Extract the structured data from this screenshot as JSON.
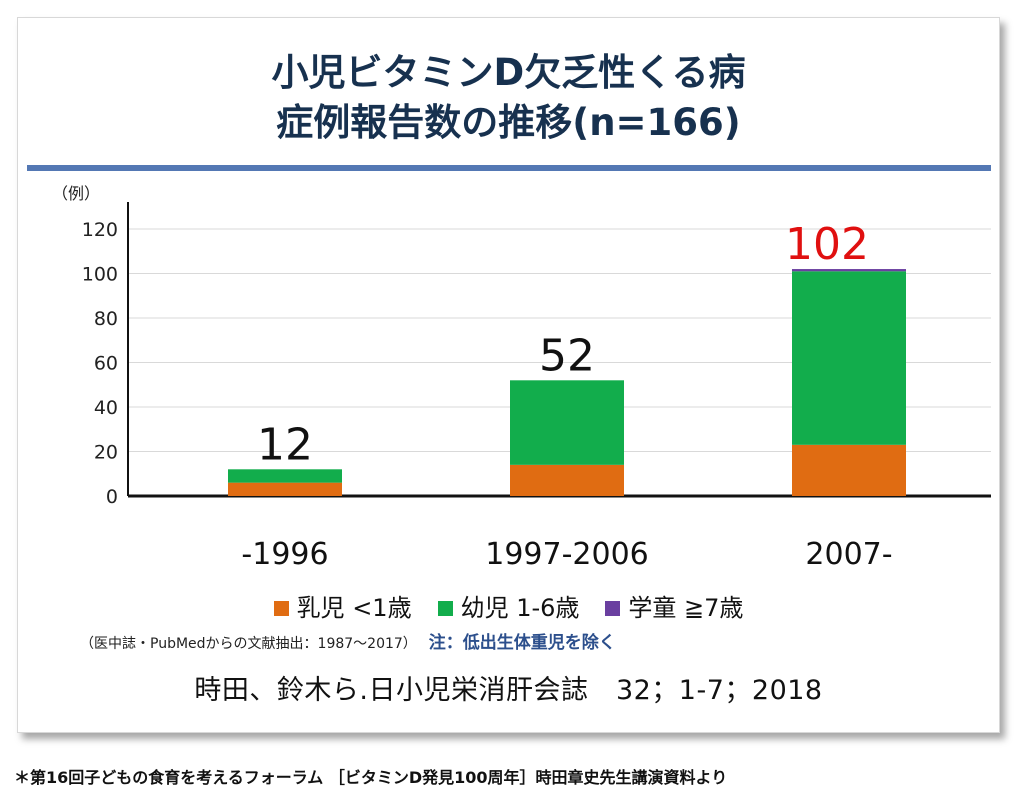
{
  "title_lines": [
    "小児ビタミンD欠乏性くる病",
    "症例報告数の推移(n=166)"
  ],
  "ylabel": "（例）",
  "note": "（医中誌・PubMedからの文献抽出：1987〜2017）",
  "note_strong": "注：低出生体重児を除く",
  "citation": "時田、鈴木ら.日小児栄消肝会誌　32；1-7；2018",
  "footer": "＊第16回子どもの食育を考えるフォーラム ［ビタミンD発見100周年］時田章史先生講演資料より",
  "colors": {
    "title": "#17314f",
    "rule": "#5478b4",
    "infant": "#e06c12",
    "toddler": "#12ad4c",
    "school": "#6a3fa0",
    "total_red": "#e01010"
  },
  "chart_data": {
    "type": "bar",
    "stacked": true,
    "categories": [
      "-1996",
      "1997-2006",
      "2007-"
    ],
    "series": [
      {
        "name": "乳児 <1歳",
        "values": [
          6,
          14,
          23
        ],
        "color": "#e06c12"
      },
      {
        "name": "幼児 1-6歳",
        "values": [
          6,
          38,
          78
        ],
        "color": "#12ad4c"
      },
      {
        "name": "学童 ≧7歳",
        "values": [
          0,
          0,
          1
        ],
        "color": "#6a3fa0"
      }
    ],
    "totals": [
      "12",
      "52",
      "102"
    ],
    "ylabel": "（例）",
    "ylim": [
      0,
      120
    ],
    "yticks": [
      0,
      20,
      40,
      60,
      80,
      100,
      120
    ],
    "grid": true,
    "legend_position": "bottom"
  }
}
